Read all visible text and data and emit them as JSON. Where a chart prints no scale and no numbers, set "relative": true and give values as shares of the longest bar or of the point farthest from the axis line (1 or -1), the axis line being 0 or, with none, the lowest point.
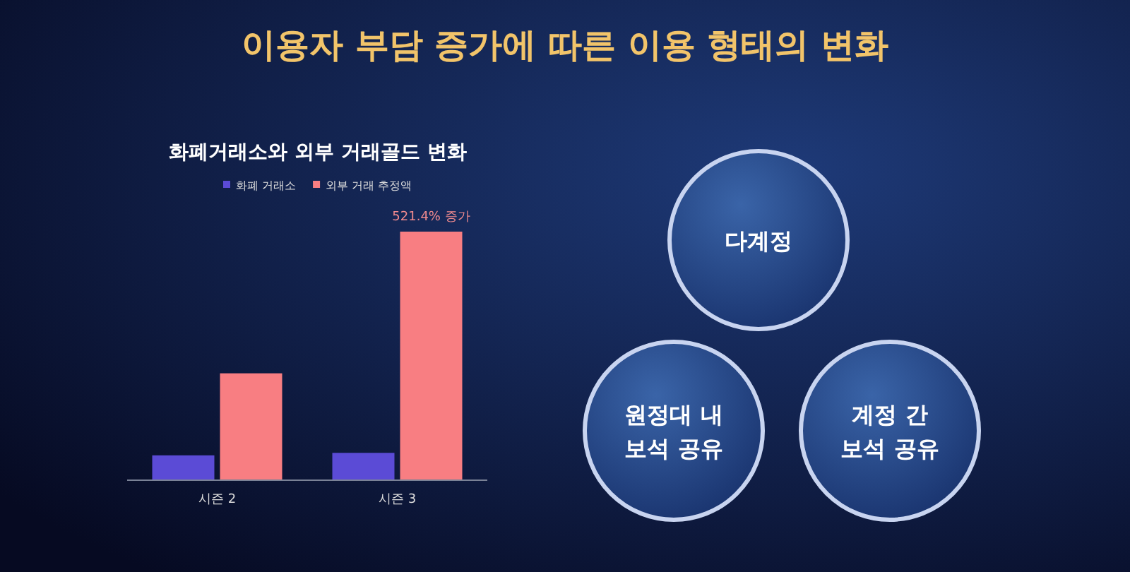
{
  "chart_data": [
    {
      "type": "bar",
      "title": "이용자 부담 증가에 따른 이용 형태의 변화",
      "subtitle": "화폐거래소와 외부 거래골드 변화",
      "relative": true,
      "legend": "top",
      "categories": [
        "시즌 2",
        "시즌 3"
      ],
      "series": [
        {
          "name": "화폐 거래소",
          "color": "#5b4bd6",
          "values": [
            0.1,
            0.11
          ]
        },
        {
          "name": "외부 거래 추정액",
          "color": "#f87e82",
          "values": [
            0.43,
            1
          ]
        }
      ],
      "annotations": [
        {
          "text": "521.4% 증가",
          "x": "시즌 3",
          "y": 1
        }
      ]
    },
    {
      "type": "other",
      "annotations": [
        "다계정",
        "원정대 내\n보석 공유",
        "계정 간\n보석 공유"
      ]
    }
  ]
}
